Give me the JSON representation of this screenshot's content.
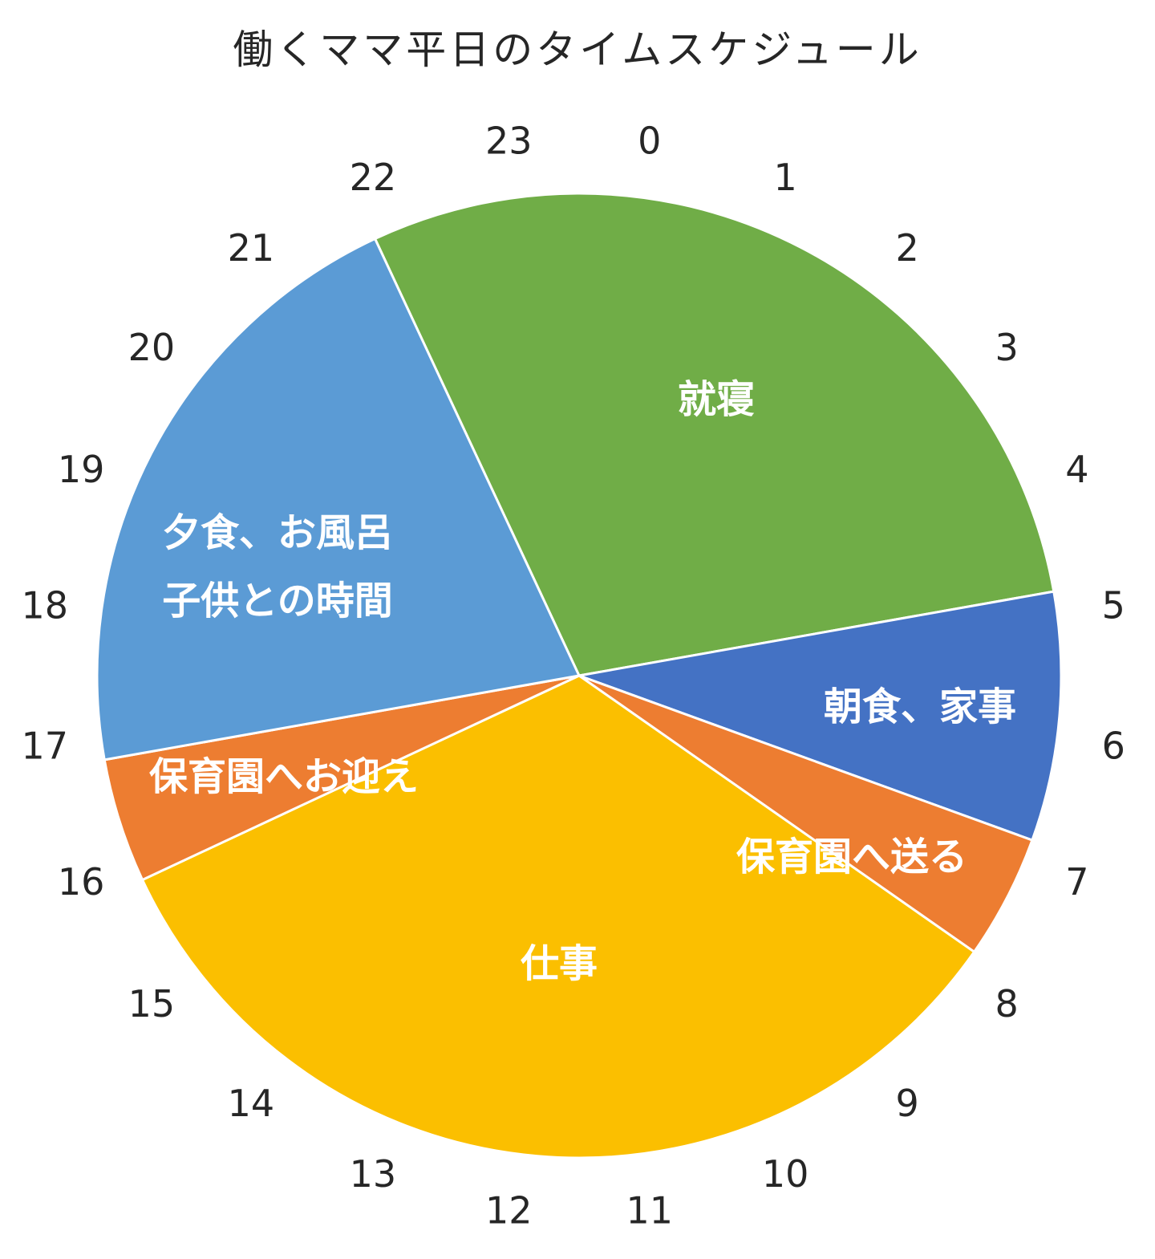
{
  "chart_data": {
    "type": "pie",
    "title": "働くママ平日のタイムスケジュール",
    "start_hour": 22.33,
    "unit": "hours",
    "slices": [
      {
        "label": "就寝",
        "lines": [
          "就寝"
        ],
        "value": 7,
        "color": "#70AD47"
      },
      {
        "label": "朝食、家事",
        "lines": [
          "朝食、家事"
        ],
        "value": 2,
        "color": "#4472C4"
      },
      {
        "label": "保育園へ送る",
        "lines": [
          "保育園へ送る"
        ],
        "value": 1,
        "color": "#ED7D31"
      },
      {
        "label": "仕事",
        "lines": [
          "仕事"
        ],
        "value": 8,
        "color": "#FBBF00"
      },
      {
        "label": "保育園へお迎え",
        "lines": [
          "保育園へお迎え"
        ],
        "value": 1,
        "color": "#ED7D31"
      },
      {
        "label": "夕食、お風呂 子供との時間",
        "lines": [
          "夕食、お風呂",
          "子供との時間"
        ],
        "value": 5,
        "color": "#5B9BD5"
      }
    ],
    "hour_labels": [
      "0",
      "1",
      "2",
      "3",
      "4",
      "5",
      "6",
      "7",
      "8",
      "9",
      "10",
      "11",
      "12",
      "13",
      "14",
      "15",
      "16",
      "17",
      "18",
      "19",
      "20",
      "21",
      "22",
      "23"
    ]
  }
}
